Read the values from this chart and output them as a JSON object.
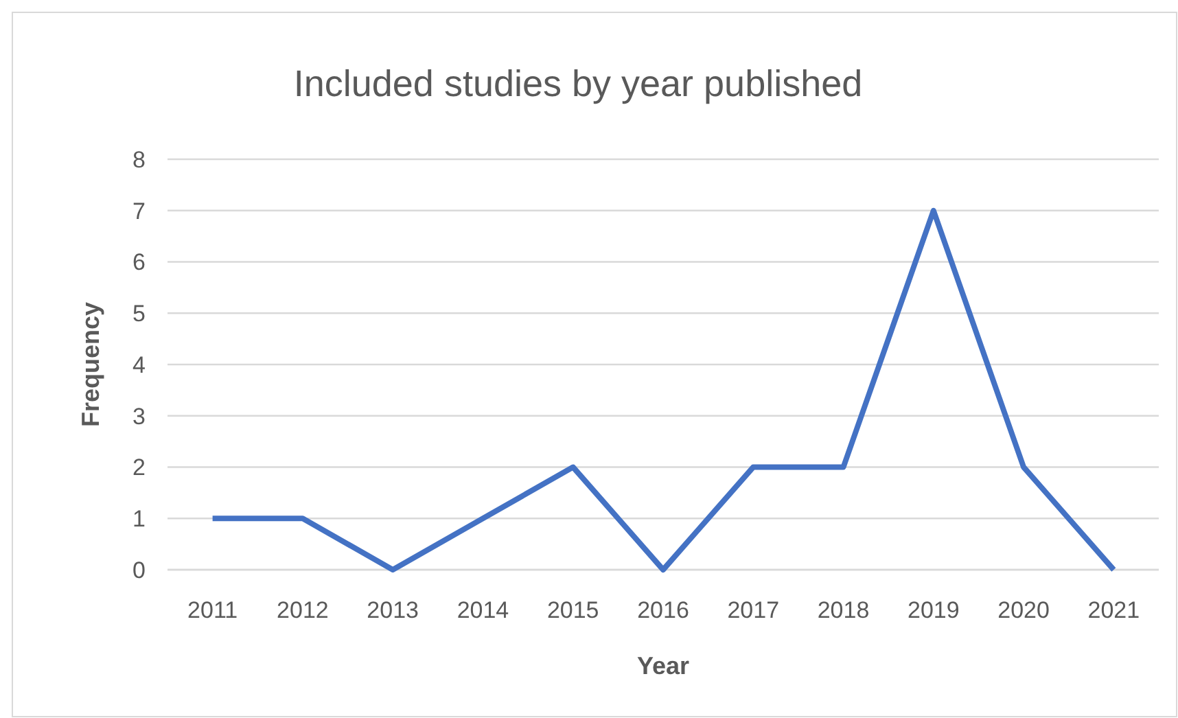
{
  "chart_data": {
    "type": "line",
    "title": "Included studies by year published",
    "xlabel": "Year",
    "ylabel": "Frequency",
    "categories": [
      "2011",
      "2012",
      "2013",
      "2014",
      "2015",
      "2016",
      "2017",
      "2018",
      "2019",
      "2020",
      "2021"
    ],
    "series": [
      {
        "color": "#4472c4",
        "values": [
          1,
          1,
          0,
          1,
          2,
          0,
          2,
          2,
          7,
          2,
          0
        ]
      }
    ],
    "ylim": [
      0,
      8
    ],
    "yticks": [
      0,
      1,
      2,
      3,
      4,
      5,
      6,
      7,
      8
    ],
    "grid": "y",
    "marker": "none",
    "line_style": "solid"
  }
}
